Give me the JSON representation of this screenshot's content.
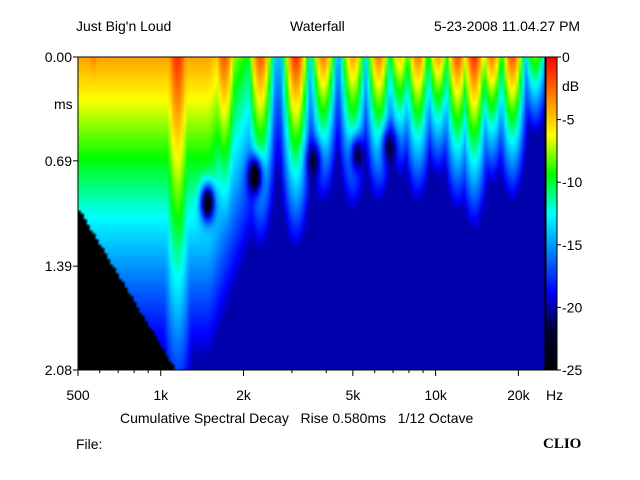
{
  "header": {
    "left": "Just Big'n Loud",
    "center": "Waterfall",
    "right": "5-23-2008 11.04.27 PM"
  },
  "footer": {
    "file_label": "File:",
    "brand": "CLIO"
  },
  "chart_data": {
    "type": "heatmap",
    "title": "Waterfall",
    "subtitle": "Cumulative Spectral Decay   Rise 0.580ms   1/12 Octave",
    "x_scale": "log",
    "x_unit": "Hz",
    "xlim": [
      500,
      25000
    ],
    "x_ticks": [
      {
        "value": 500,
        "label": "500"
      },
      {
        "value": 1000,
        "label": "1k"
      },
      {
        "value": 2000,
        "label": "2k"
      },
      {
        "value": 5000,
        "label": "5k"
      },
      {
        "value": 10000,
        "label": "10k"
      },
      {
        "value": 20000,
        "label": "20k"
      }
    ],
    "y_unit": "ms",
    "ylim": [
      0.0,
      2.08
    ],
    "y_ticks": [
      {
        "value": 0.0,
        "label": "0.00"
      },
      {
        "value": 0.69,
        "label": "0.69"
      },
      {
        "value": 1.39,
        "label": "1.39"
      },
      {
        "value": 2.08,
        "label": "2.08"
      }
    ],
    "colorbar": {
      "unit": "dB",
      "range": [
        -25,
        0
      ],
      "ticks": [
        0,
        -5,
        -10,
        -15,
        -20,
        -25
      ],
      "colors": [
        "#ff0000",
        "#ff8000",
        "#ffff00",
        "#00ff00",
        "#00ffff",
        "#0080ff",
        "#0000ff",
        "#000033",
        "#000000"
      ]
    },
    "surface_peaks": [
      {
        "freq": 570,
        "level": -3,
        "decay": 1.0
      },
      {
        "freq": 1150,
        "level": -1,
        "decay": 1.8
      },
      {
        "freq": 1700,
        "level": -2,
        "decay": 1.2
      },
      {
        "freq": 2300,
        "level": -2,
        "decay": 1.0
      },
      {
        "freq": 3100,
        "level": -1,
        "decay": 0.95
      },
      {
        "freq": 3900,
        "level": -3,
        "decay": 0.8
      },
      {
        "freq": 5000,
        "level": -4,
        "decay": 0.9
      },
      {
        "freq": 6200,
        "level": -3,
        "decay": 0.8
      },
      {
        "freq": 7400,
        "level": -5,
        "decay": 0.75
      },
      {
        "freq": 8600,
        "level": -3,
        "decay": 0.8
      },
      {
        "freq": 10200,
        "level": -4,
        "decay": 0.7
      },
      {
        "freq": 12000,
        "level": -2,
        "decay": 0.8
      },
      {
        "freq": 13800,
        "level": -1,
        "decay": 0.85
      },
      {
        "freq": 16000,
        "level": -3,
        "decay": 0.7
      },
      {
        "freq": 19000,
        "level": -2,
        "decay": 0.75
      },
      {
        "freq": 23000,
        "level": -8,
        "decay": 0.6
      }
    ],
    "dips": [
      {
        "freq": 1480,
        "time": 0.97,
        "level": -25
      },
      {
        "freq": 2200,
        "time": 0.79,
        "level": -25
      },
      {
        "freq": 3600,
        "time": 0.69,
        "level": -22
      },
      {
        "freq": 5200,
        "time": 0.65,
        "level": -22
      },
      {
        "freq": 6800,
        "time": 0.6,
        "level": -22
      }
    ]
  }
}
